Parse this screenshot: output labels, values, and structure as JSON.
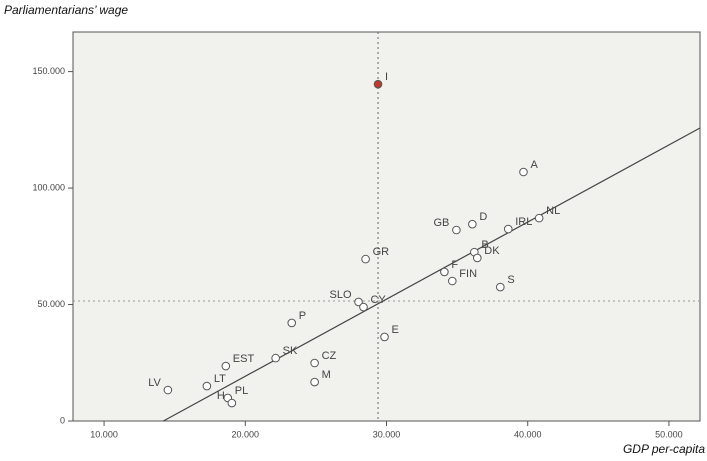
{
  "chart_data": {
    "type": "scatter",
    "y_label": "Parliamentarians’ wage",
    "x_label": "GDP  per-capita",
    "xlim": [
      7800,
      52200
    ],
    "ylim": [
      0,
      167000
    ],
    "xticks": [
      {
        "value": 10000,
        "label": "10.000"
      },
      {
        "value": 20000,
        "label": "20.000"
      },
      {
        "value": 30000,
        "label": "30.000"
      },
      {
        "value": 40000,
        "label": "40.000"
      },
      {
        "value": 50000,
        "label": "50.000"
      }
    ],
    "yticks": [
      {
        "value": 0,
        "label": "0"
      },
      {
        "value": 50000,
        "label": "50.000"
      },
      {
        "value": 100000,
        "label": "100.000"
      },
      {
        "value": 150000,
        "label": "150.000"
      }
    ],
    "reference_lines": {
      "x": 29400,
      "y": 51500
    },
    "fit_line": {
      "x": [
        14200,
        52200
      ],
      "y": [
        0,
        125800
      ]
    },
    "marker_stroke": "#555555",
    "points": [
      {
        "label": "I",
        "x": 29400,
        "y": 144600,
        "fill": "#c0392b"
      },
      {
        "label": "A",
        "x": 39700,
        "y": 106900,
        "fill": "#ffffff"
      },
      {
        "label": "GB",
        "x": 34950,
        "y": 82000,
        "fill": "#ffffff"
      },
      {
        "label": "D",
        "x": 36080,
        "y": 84500,
        "fill": "#ffffff"
      },
      {
        "label": "IRL",
        "x": 38620,
        "y": 82400,
        "fill": "#ffffff"
      },
      {
        "label": "NL",
        "x": 40810,
        "y": 87100,
        "fill": "#ffffff"
      },
      {
        "label": "B",
        "x": 36220,
        "y": 72500,
        "fill": "#ffffff"
      },
      {
        "label": "DK",
        "x": 36430,
        "y": 70000,
        "fill": "#ffffff"
      },
      {
        "label": "F",
        "x": 34100,
        "y": 64000,
        "fill": "#ffffff"
      },
      {
        "label": "FIN",
        "x": 34660,
        "y": 60100,
        "fill": "#ffffff"
      },
      {
        "label": "S",
        "x": 38060,
        "y": 57500,
        "fill": "#ffffff"
      },
      {
        "label": "GR",
        "x": 28520,
        "y": 69500,
        "fill": "#ffffff"
      },
      {
        "label": "SLO",
        "x": 28020,
        "y": 51100,
        "fill": "#ffffff"
      },
      {
        "label": "CY",
        "x": 28370,
        "y": 48900,
        "fill": "#ffffff"
      },
      {
        "label": "E",
        "x": 29860,
        "y": 36100,
        "fill": "#ffffff"
      },
      {
        "label": "P",
        "x": 23290,
        "y": 42100,
        "fill": "#ffffff"
      },
      {
        "label": "SK",
        "x": 22150,
        "y": 27000,
        "fill": "#ffffff"
      },
      {
        "label": "CZ",
        "x": 24910,
        "y": 24900,
        "fill": "#ffffff"
      },
      {
        "label": "M",
        "x": 24910,
        "y": 16700,
        "fill": "#ffffff"
      },
      {
        "label": "EST",
        "x": 18620,
        "y": 23600,
        "fill": "#ffffff"
      },
      {
        "label": "LT",
        "x": 17280,
        "y": 15000,
        "fill": "#ffffff"
      },
      {
        "label": "LV",
        "x": 14520,
        "y": 13300,
        "fill": "#ffffff"
      },
      {
        "label": "PL",
        "x": 18760,
        "y": 9900,
        "fill": "#ffffff"
      },
      {
        "label": "H",
        "x": 19050,
        "y": 7700,
        "fill": "#ffffff"
      }
    ]
  }
}
